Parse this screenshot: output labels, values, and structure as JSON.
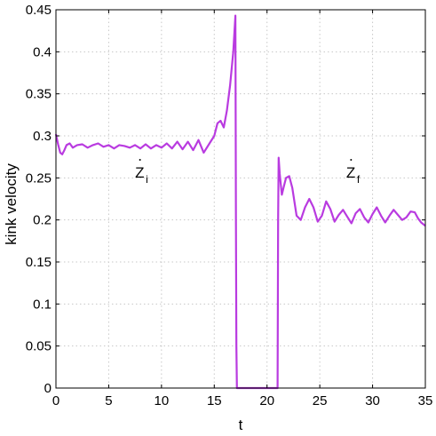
{
  "chart_data": {
    "type": "line",
    "xlabel": "t",
    "ylabel": "kink velocity",
    "xlim": [
      0,
      35
    ],
    "ylim": [
      0,
      0.45
    ],
    "xticks": [
      0,
      5,
      10,
      15,
      20,
      25,
      30,
      35
    ],
    "yticks": [
      0,
      0.05,
      0.1,
      0.15,
      0.2,
      0.25,
      0.3,
      0.35,
      0.4,
      0.45
    ],
    "xtick_labels": [
      "0",
      "5",
      "10",
      "15",
      "20",
      "25",
      "30",
      "35"
    ],
    "ytick_labels": [
      "0",
      "0.05",
      "0.1",
      "0.15",
      "0.2",
      "0.25",
      "0.3",
      "0.35",
      "0.4",
      "0.45"
    ],
    "grid": true,
    "series": [
      {
        "color": "#b93be0",
        "x": [
          0,
          0.2,
          0.4,
          0.6,
          0.8,
          1.0,
          1.3,
          1.6,
          2.0,
          2.5,
          3.0,
          3.5,
          4.0,
          4.5,
          5.0,
          5.5,
          6.0,
          6.5,
          7.0,
          7.5,
          8.0,
          8.5,
          9.0,
          9.5,
          10.0,
          10.5,
          11.0,
          11.5,
          12.0,
          12.5,
          13.0,
          13.5,
          14.0,
          14.5,
          15.0,
          15.3,
          15.6,
          15.9,
          16.2,
          16.5,
          16.8,
          17.0,
          17.05,
          17.1,
          17.15,
          17.2,
          21.0,
          21.05,
          21.1,
          21.2,
          21.4,
          21.6,
          21.8,
          22.1,
          22.4,
          22.8,
          23.2,
          23.6,
          24.0,
          24.4,
          24.8,
          25.2,
          25.6,
          26.0,
          26.4,
          26.8,
          27.2,
          27.6,
          28.0,
          28.4,
          28.8,
          29.2,
          29.6,
          30.0,
          30.4,
          30.8,
          31.2,
          31.6,
          32.0,
          32.4,
          32.8,
          33.2,
          33.6,
          34.0,
          34.3,
          34.6,
          35.0
        ],
        "y": [
          0.302,
          0.29,
          0.28,
          0.278,
          0.283,
          0.289,
          0.291,
          0.286,
          0.289,
          0.29,
          0.286,
          0.289,
          0.291,
          0.287,
          0.289,
          0.285,
          0.289,
          0.288,
          0.286,
          0.289,
          0.285,
          0.29,
          0.285,
          0.289,
          0.286,
          0.291,
          0.285,
          0.293,
          0.284,
          0.293,
          0.283,
          0.295,
          0.28,
          0.29,
          0.3,
          0.315,
          0.318,
          0.31,
          0.33,
          0.36,
          0.4,
          0.443,
          0.2,
          0.05,
          0.0,
          0.0,
          0.0,
          0.2,
          0.274,
          0.255,
          0.23,
          0.24,
          0.25,
          0.252,
          0.238,
          0.205,
          0.2,
          0.215,
          0.225,
          0.215,
          0.198,
          0.205,
          0.222,
          0.213,
          0.198,
          0.206,
          0.212,
          0.204,
          0.196,
          0.208,
          0.213,
          0.203,
          0.197,
          0.207,
          0.215,
          0.205,
          0.197,
          0.205,
          0.212,
          0.206,
          0.2,
          0.203,
          0.21,
          0.209,
          0.202,
          0.197,
          0.193
        ]
      }
    ],
    "annotations": [
      {
        "text": "Z",
        "subscript": "i",
        "dot": true,
        "x": 7.5,
        "y": 0.263
      },
      {
        "text": "Z",
        "subscript": "f",
        "dot": true,
        "x": 27.5,
        "y": 0.263
      }
    ]
  }
}
